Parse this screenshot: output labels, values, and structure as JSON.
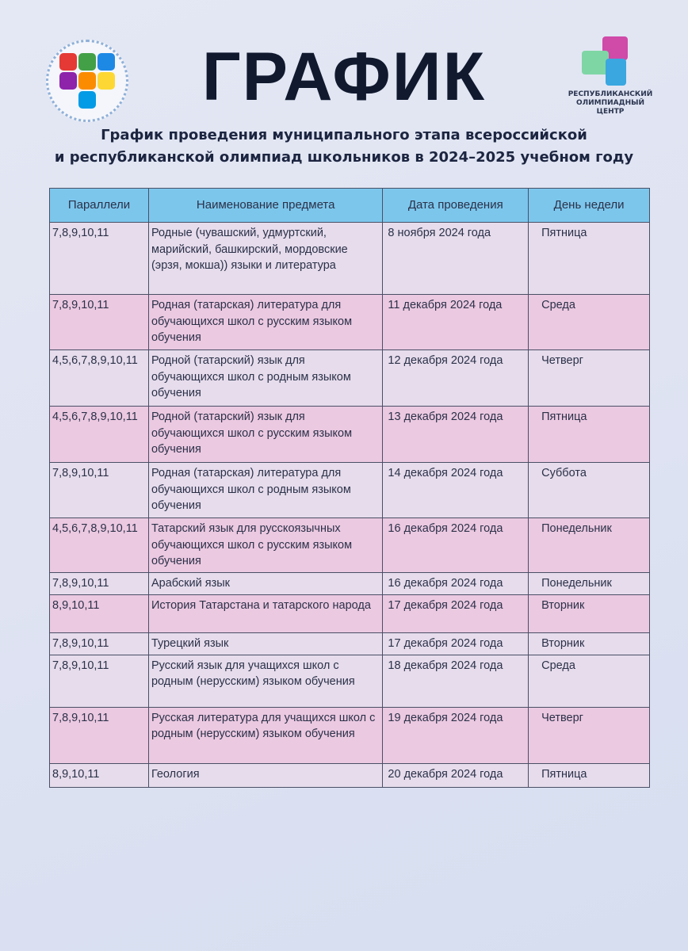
{
  "header": {
    "title": "ГРАФИК",
    "subtitle_line1": "График проведения муниципального этапа всероссийской",
    "subtitle_line2": "и республиканской олимпиад школьников в 2024–2025 учебном году",
    "right_logo_text_line1": "РЕСПУБЛИКАНСКИЙ",
    "right_logo_text_line2": "ОЛИМПИАДНЫЙ ЦЕНТР"
  },
  "colors": {
    "header_bg": "#7cc6ec",
    "row_light": "#e6dcec",
    "row_pink": "#ebc9e1",
    "title": "#10192e"
  },
  "table": {
    "columns": [
      "Параллели",
      "Наименование предмета",
      "Дата проведения",
      "День недели"
    ],
    "rows": [
      {
        "grades": "7,8,9,10,11",
        "subject": "Родные (чувашский, удмуртский, марийский, башкирский, мордовские (эрзя, мокша)) языки и литература",
        "date": "8 ноября 2024 года",
        "day": "Пятница"
      },
      {
        "grades": "7,8,9,10,11",
        "subject": "Родная (татарская) литература для обучающихся школ с русским языком обучения",
        "date": "11 декабря 2024 года",
        "day": "Среда"
      },
      {
        "grades": "4,5,6,7,8,9,10,11",
        "subject": "Родной (татарский) язык для обучающихся школ с родным языком обучения",
        "date": "12 декабря 2024 года",
        "day": "Четверг"
      },
      {
        "grades": "4,5,6,7,8,9,10,11",
        "subject": "Родной (татарский) язык для обучающихся школ с русским языком обучения",
        "date": "13 декабря 2024 года",
        "day": "Пятница"
      },
      {
        "grades": "7,8,9,10,11",
        "subject": "Родная (татарская) литература для обучающихся школ с родным языком обучения",
        "date": "14 декабря 2024 года",
        "day": "Суббота"
      },
      {
        "grades": "4,5,6,7,8,9,10,11",
        "subject": "Татарский язык для русскоязычных обучающихся школ с русским языком обучения",
        "date": "16 декабря 2024 года",
        "day": "Понедельник"
      },
      {
        "grades": "7,8,9,10,11",
        "subject": "Арабский язык",
        "date": "16 декабря 2024 года",
        "day": "Понедельник"
      },
      {
        "grades": "8,9,10,11",
        "subject": "История Татарстана и татарского народа",
        "date": "17 декабря 2024 года",
        "day": "Вторник"
      },
      {
        "grades": "7,8,9,10,11",
        "subject": "Турецкий язык",
        "date": "17 декабря 2024 года",
        "day": "Вторник"
      },
      {
        "grades": "7,8,9,10,11",
        "subject": "Русский язык для учащихся школ с родным (нерусским) языком обучения",
        "date": "18 декабря 2024 года",
        "day": "Среда"
      },
      {
        "grades": "7,8,9,10,11",
        "subject": "Русская литература для учащихся школ с родным (нерусским) языком обучения",
        "date": "19 декабря 2024 года",
        "day": "Четверг"
      },
      {
        "grades": "8,9,10,11",
        "subject": "Геология",
        "date": "20 декабря 2024 года",
        "day": "Пятница"
      }
    ]
  }
}
